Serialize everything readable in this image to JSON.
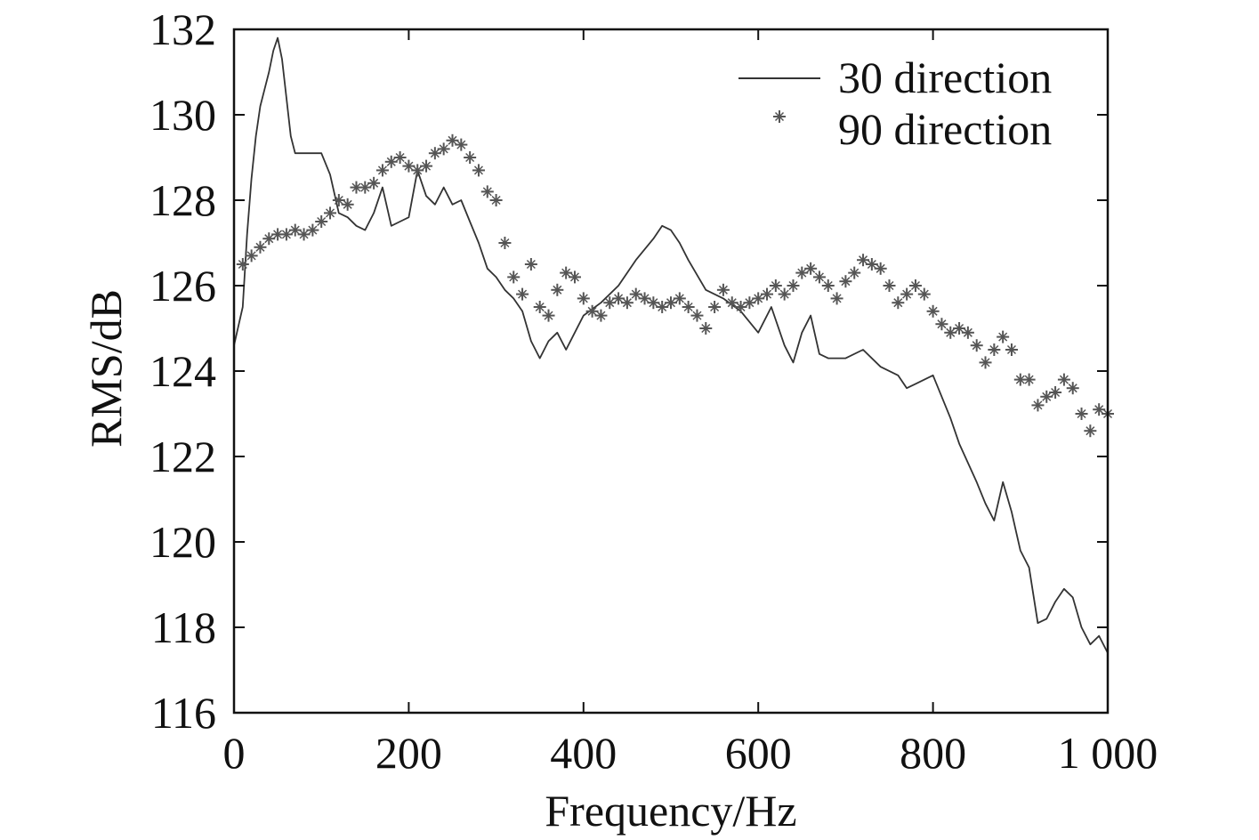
{
  "chart_data": {
    "type": "line",
    "title": "",
    "xlabel": "Frequency/Hz",
    "ylabel": "RMS/dB",
    "xlim": [
      0,
      1000
    ],
    "ylim": [
      116,
      132
    ],
    "xticks": [
      0,
      200,
      400,
      600,
      800,
      1000
    ],
    "xtick_labels": [
      "0",
      "200",
      "400",
      "600",
      "800",
      "1 000"
    ],
    "yticks": [
      116,
      118,
      120,
      122,
      124,
      126,
      128,
      130,
      132
    ],
    "ytick_labels": [
      "116",
      "118",
      "120",
      "122",
      "124",
      "126",
      "128",
      "130",
      "132"
    ],
    "grid": false,
    "legend_position": "top-right",
    "colors": {
      "line": "#333333",
      "markers": "#555555",
      "axes": "#111111"
    },
    "series": [
      {
        "name": "30 direction",
        "style": "line",
        "x": [
          0,
          10,
          15,
          20,
          25,
          30,
          35,
          40,
          45,
          50,
          55,
          60,
          65,
          70,
          80,
          90,
          100,
          110,
          120,
          130,
          140,
          150,
          160,
          170,
          180,
          190,
          200,
          210,
          220,
          230,
          240,
          250,
          260,
          270,
          280,
          290,
          300,
          310,
          320,
          330,
          340,
          350,
          360,
          370,
          380,
          390,
          400,
          420,
          440,
          460,
          480,
          490,
          500,
          510,
          520,
          540,
          560,
          580,
          600,
          615,
          630,
          640,
          650,
          660,
          670,
          680,
          700,
          720,
          740,
          760,
          770,
          780,
          800,
          820,
          830,
          850,
          860,
          870,
          880,
          890,
          900,
          910,
          920,
          930,
          940,
          950,
          960,
          970,
          980,
          990,
          1000
        ],
        "values": [
          124.6,
          125.5,
          127.2,
          128.5,
          129.5,
          130.2,
          130.6,
          131.0,
          131.5,
          131.8,
          131.3,
          130.4,
          129.5,
          129.1,
          129.1,
          129.1,
          129.1,
          128.6,
          127.7,
          127.6,
          127.4,
          127.3,
          127.7,
          128.3,
          127.4,
          127.5,
          127.6,
          128.7,
          128.1,
          127.9,
          128.3,
          127.9,
          128.0,
          127.5,
          127.0,
          126.4,
          126.2,
          125.9,
          125.7,
          125.4,
          124.7,
          124.3,
          124.7,
          124.9,
          124.5,
          124.9,
          125.3,
          125.6,
          126.0,
          126.6,
          127.1,
          127.4,
          127.3,
          127.0,
          126.6,
          125.9,
          125.7,
          125.4,
          124.9,
          125.5,
          124.6,
          124.2,
          124.9,
          125.3,
          124.4,
          124.3,
          124.3,
          124.5,
          124.1,
          123.9,
          123.6,
          123.7,
          123.9,
          122.9,
          122.3,
          121.4,
          120.9,
          120.5,
          121.4,
          120.7,
          119.8,
          119.4,
          118.1,
          118.2,
          118.6,
          118.9,
          118.7,
          118.0,
          117.6,
          117.8,
          117.4
        ]
      },
      {
        "name": "90 direction",
        "style": "markers",
        "x": [
          10,
          20,
          30,
          40,
          50,
          60,
          70,
          80,
          90,
          100,
          110,
          120,
          130,
          140,
          150,
          160,
          170,
          180,
          190,
          200,
          210,
          220,
          230,
          240,
          250,
          260,
          270,
          280,
          290,
          300,
          310,
          320,
          330,
          340,
          350,
          360,
          370,
          380,
          390,
          400,
          410,
          420,
          430,
          440,
          450,
          460,
          470,
          480,
          490,
          500,
          510,
          520,
          530,
          540,
          550,
          560,
          570,
          580,
          590,
          600,
          610,
          620,
          630,
          640,
          650,
          660,
          670,
          680,
          690,
          700,
          710,
          720,
          730,
          740,
          750,
          760,
          770,
          780,
          790,
          800,
          810,
          820,
          830,
          840,
          850,
          860,
          870,
          880,
          890,
          900,
          910,
          920,
          930,
          940,
          950,
          960,
          970,
          980,
          990,
          1000
        ],
        "values": [
          126.5,
          126.7,
          126.9,
          127.1,
          127.2,
          127.2,
          127.3,
          127.2,
          127.3,
          127.5,
          127.7,
          128.0,
          127.9,
          128.3,
          128.3,
          128.4,
          128.7,
          128.9,
          129.0,
          128.8,
          128.7,
          128.8,
          129.1,
          129.2,
          129.4,
          129.3,
          129.0,
          128.7,
          128.2,
          128.0,
          127.0,
          126.2,
          125.8,
          126.5,
          125.5,
          125.3,
          125.9,
          126.3,
          126.2,
          125.7,
          125.4,
          125.3,
          125.6,
          125.7,
          125.6,
          125.8,
          125.7,
          125.6,
          125.5,
          125.6,
          125.7,
          125.5,
          125.3,
          125.0,
          125.5,
          125.9,
          125.6,
          125.5,
          125.6,
          125.7,
          125.8,
          126.0,
          125.8,
          126.0,
          126.3,
          126.4,
          126.2,
          126.0,
          125.7,
          126.1,
          126.3,
          126.6,
          126.5,
          126.4,
          126.0,
          125.6,
          125.8,
          126.0,
          125.8,
          125.4,
          125.1,
          124.9,
          125.0,
          124.9,
          124.6,
          124.2,
          124.5,
          124.8,
          124.5,
          123.8,
          123.8,
          123.2,
          123.4,
          123.5,
          123.8,
          123.6,
          123.0,
          122.6,
          123.1,
          123.0
        ]
      }
    ]
  }
}
